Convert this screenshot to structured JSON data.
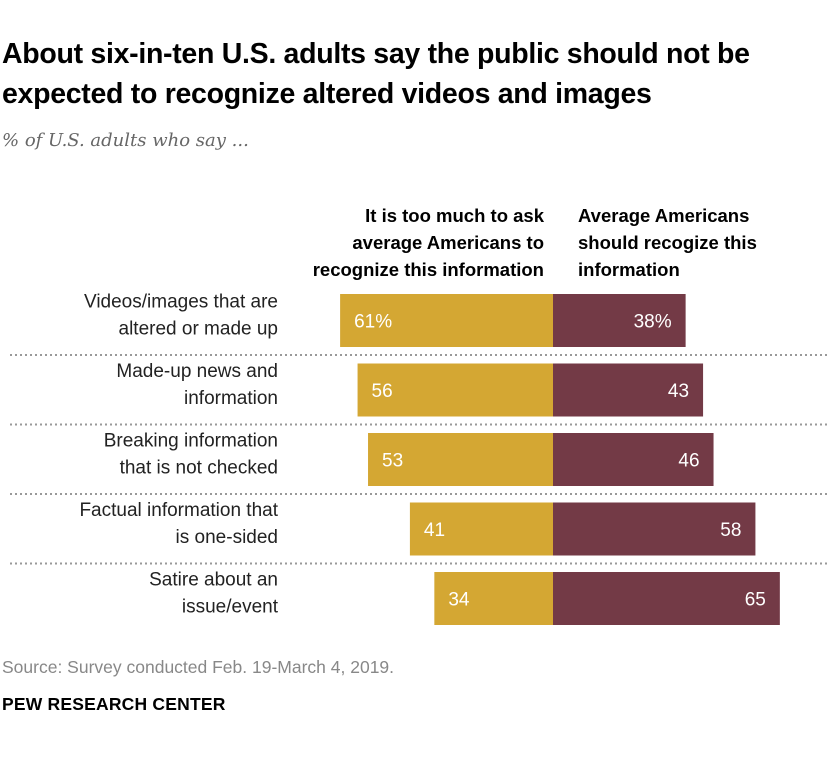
{
  "title": "About six-in-ten U.S. adults say the public should not be expected to recognize altered videos and images",
  "subtitle": "% of U.S. adults who say ...",
  "source": "Source: Survey conducted Feb. 19-March 4, 2019.",
  "brand": "PEW RESEARCH CENTER",
  "colors": {
    "left_series": "#d4a733",
    "right_series": "#733a46",
    "divider": "#999999"
  },
  "chart_data": {
    "type": "bar",
    "orientation": "horizontal-diverging",
    "categories": [
      "Videos/images that are altered or made up",
      "Made-up news and information",
      "Breaking information that is not checked",
      "Factual information that is one-sided",
      "Satire about an issue/event"
    ],
    "category_lines": [
      [
        "Videos/images that are",
        "altered or made up"
      ],
      [
        "Made-up news and",
        "information"
      ],
      [
        "Breaking information",
        "that is not checked"
      ],
      [
        "Factual information that",
        "is one-sided"
      ],
      [
        "Satire about an",
        "issue/event"
      ]
    ],
    "series": [
      {
        "name": "It is too much to ask average Americans to recognize this information",
        "name_lines": [
          "It is too much to ask",
          "average Americans to",
          "recognize this information"
        ],
        "values": [
          61,
          56,
          53,
          41,
          34
        ],
        "labels": [
          "61%",
          "56",
          "53",
          "41",
          "34"
        ]
      },
      {
        "name": "Average Americans should recognize this information",
        "name_lines": [
          "Average Americans",
          "should recogize this",
          "information"
        ],
        "values": [
          38,
          43,
          46,
          58,
          65
        ],
        "labels": [
          "38%",
          "43",
          "46",
          "58",
          "65"
        ]
      }
    ],
    "xlim": [
      0,
      100
    ],
    "legend": "column headers above bars"
  }
}
